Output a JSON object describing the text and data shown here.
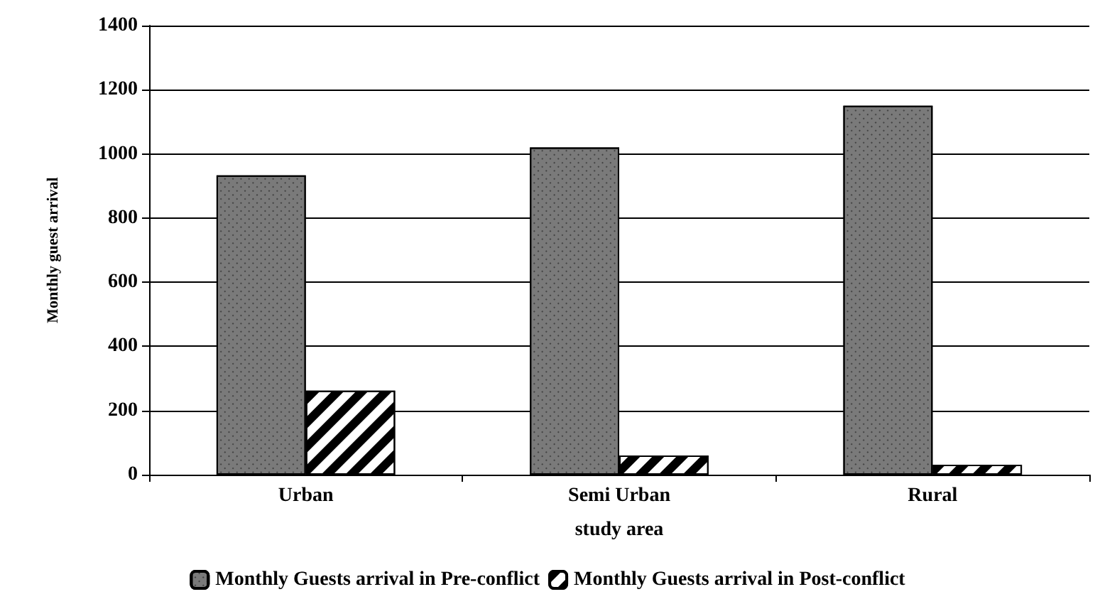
{
  "chart_data": {
    "type": "bar",
    "xlabel": "study area",
    "ylabel": "Monthly guest arrival",
    "categories": [
      "Urban",
      "Semi Urban",
      "Rural"
    ],
    "series": [
      {
        "name": "Monthly Guests arrival in Pre-conflict",
        "color": "#7a7a7a",
        "values": [
          933,
          1020,
          1150
        ]
      },
      {
        "name": "Monthly Guests arrival in Post-conflict",
        "color": "#ffffff",
        "values": [
          262,
          60,
          31
        ]
      }
    ],
    "ylim": [
      0,
      1400
    ],
    "yticks": [
      0,
      200,
      400,
      600,
      800,
      1000,
      1200,
      1400
    ],
    "grid": "y",
    "legend": "bottom"
  }
}
